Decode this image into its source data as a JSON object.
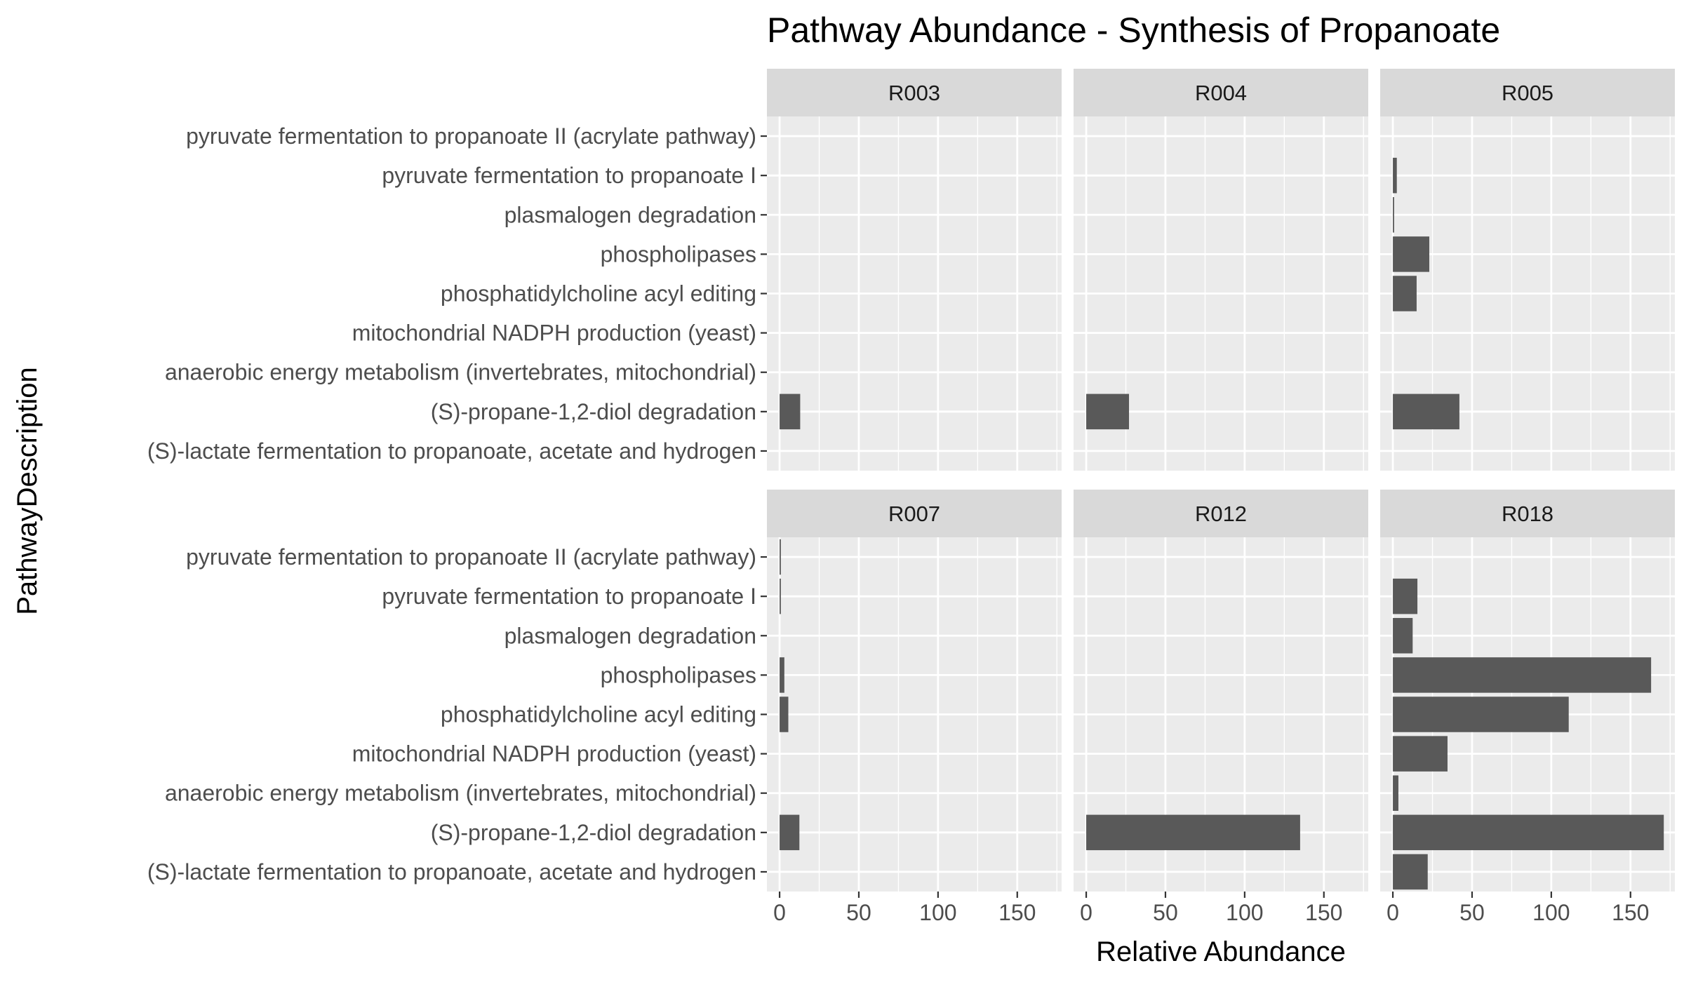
{
  "chart_data": {
    "type": "bar",
    "orientation": "horizontal",
    "title": "Pathway Abundance - Synthesis of Propanoate",
    "xlabel": "Relative Abundance",
    "ylabel": "PathwayDescription",
    "xlim": [
      -8,
      178
    ],
    "x_ticks": [
      0,
      50,
      100,
      150
    ],
    "grid": true,
    "bar_color": "#595959",
    "panel_bg": "#ebebeb",
    "strip_bg": "#d9d9d9",
    "categories": [
      "pyruvate fermentation to propanoate II (acrylate pathway)",
      "pyruvate fermentation to propanoate I",
      "plasmalogen degradation",
      "phospholipases",
      "phosphatidylcholine acyl editing",
      "mitochondrial NADPH production (yeast)",
      "anaerobic energy metabolism (invertebrates, mitochondrial)",
      "(S)-propane-1,2-diol degradation",
      "(S)-lactate fermentation to propanoate, acetate and hydrogen"
    ],
    "facets": [
      {
        "name": "R003",
        "values": [
          0,
          0,
          0,
          0,
          0,
          0,
          0,
          13,
          0
        ]
      },
      {
        "name": "R004",
        "values": [
          0,
          0,
          0,
          0,
          0,
          0,
          0,
          27,
          0
        ]
      },
      {
        "name": "R005",
        "values": [
          0,
          2.5,
          0.8,
          23,
          15,
          0,
          0,
          42,
          0
        ]
      },
      {
        "name": "R007",
        "values": [
          0.8,
          0.8,
          0,
          3,
          5.5,
          0,
          0,
          12.5,
          0
        ]
      },
      {
        "name": "R012",
        "values": [
          0,
          0,
          0,
          0,
          0,
          0,
          0,
          135,
          0
        ]
      },
      {
        "name": "R018",
        "values": [
          0,
          15.5,
          12.5,
          163,
          111,
          34.5,
          3.5,
          171,
          22
        ]
      }
    ]
  }
}
